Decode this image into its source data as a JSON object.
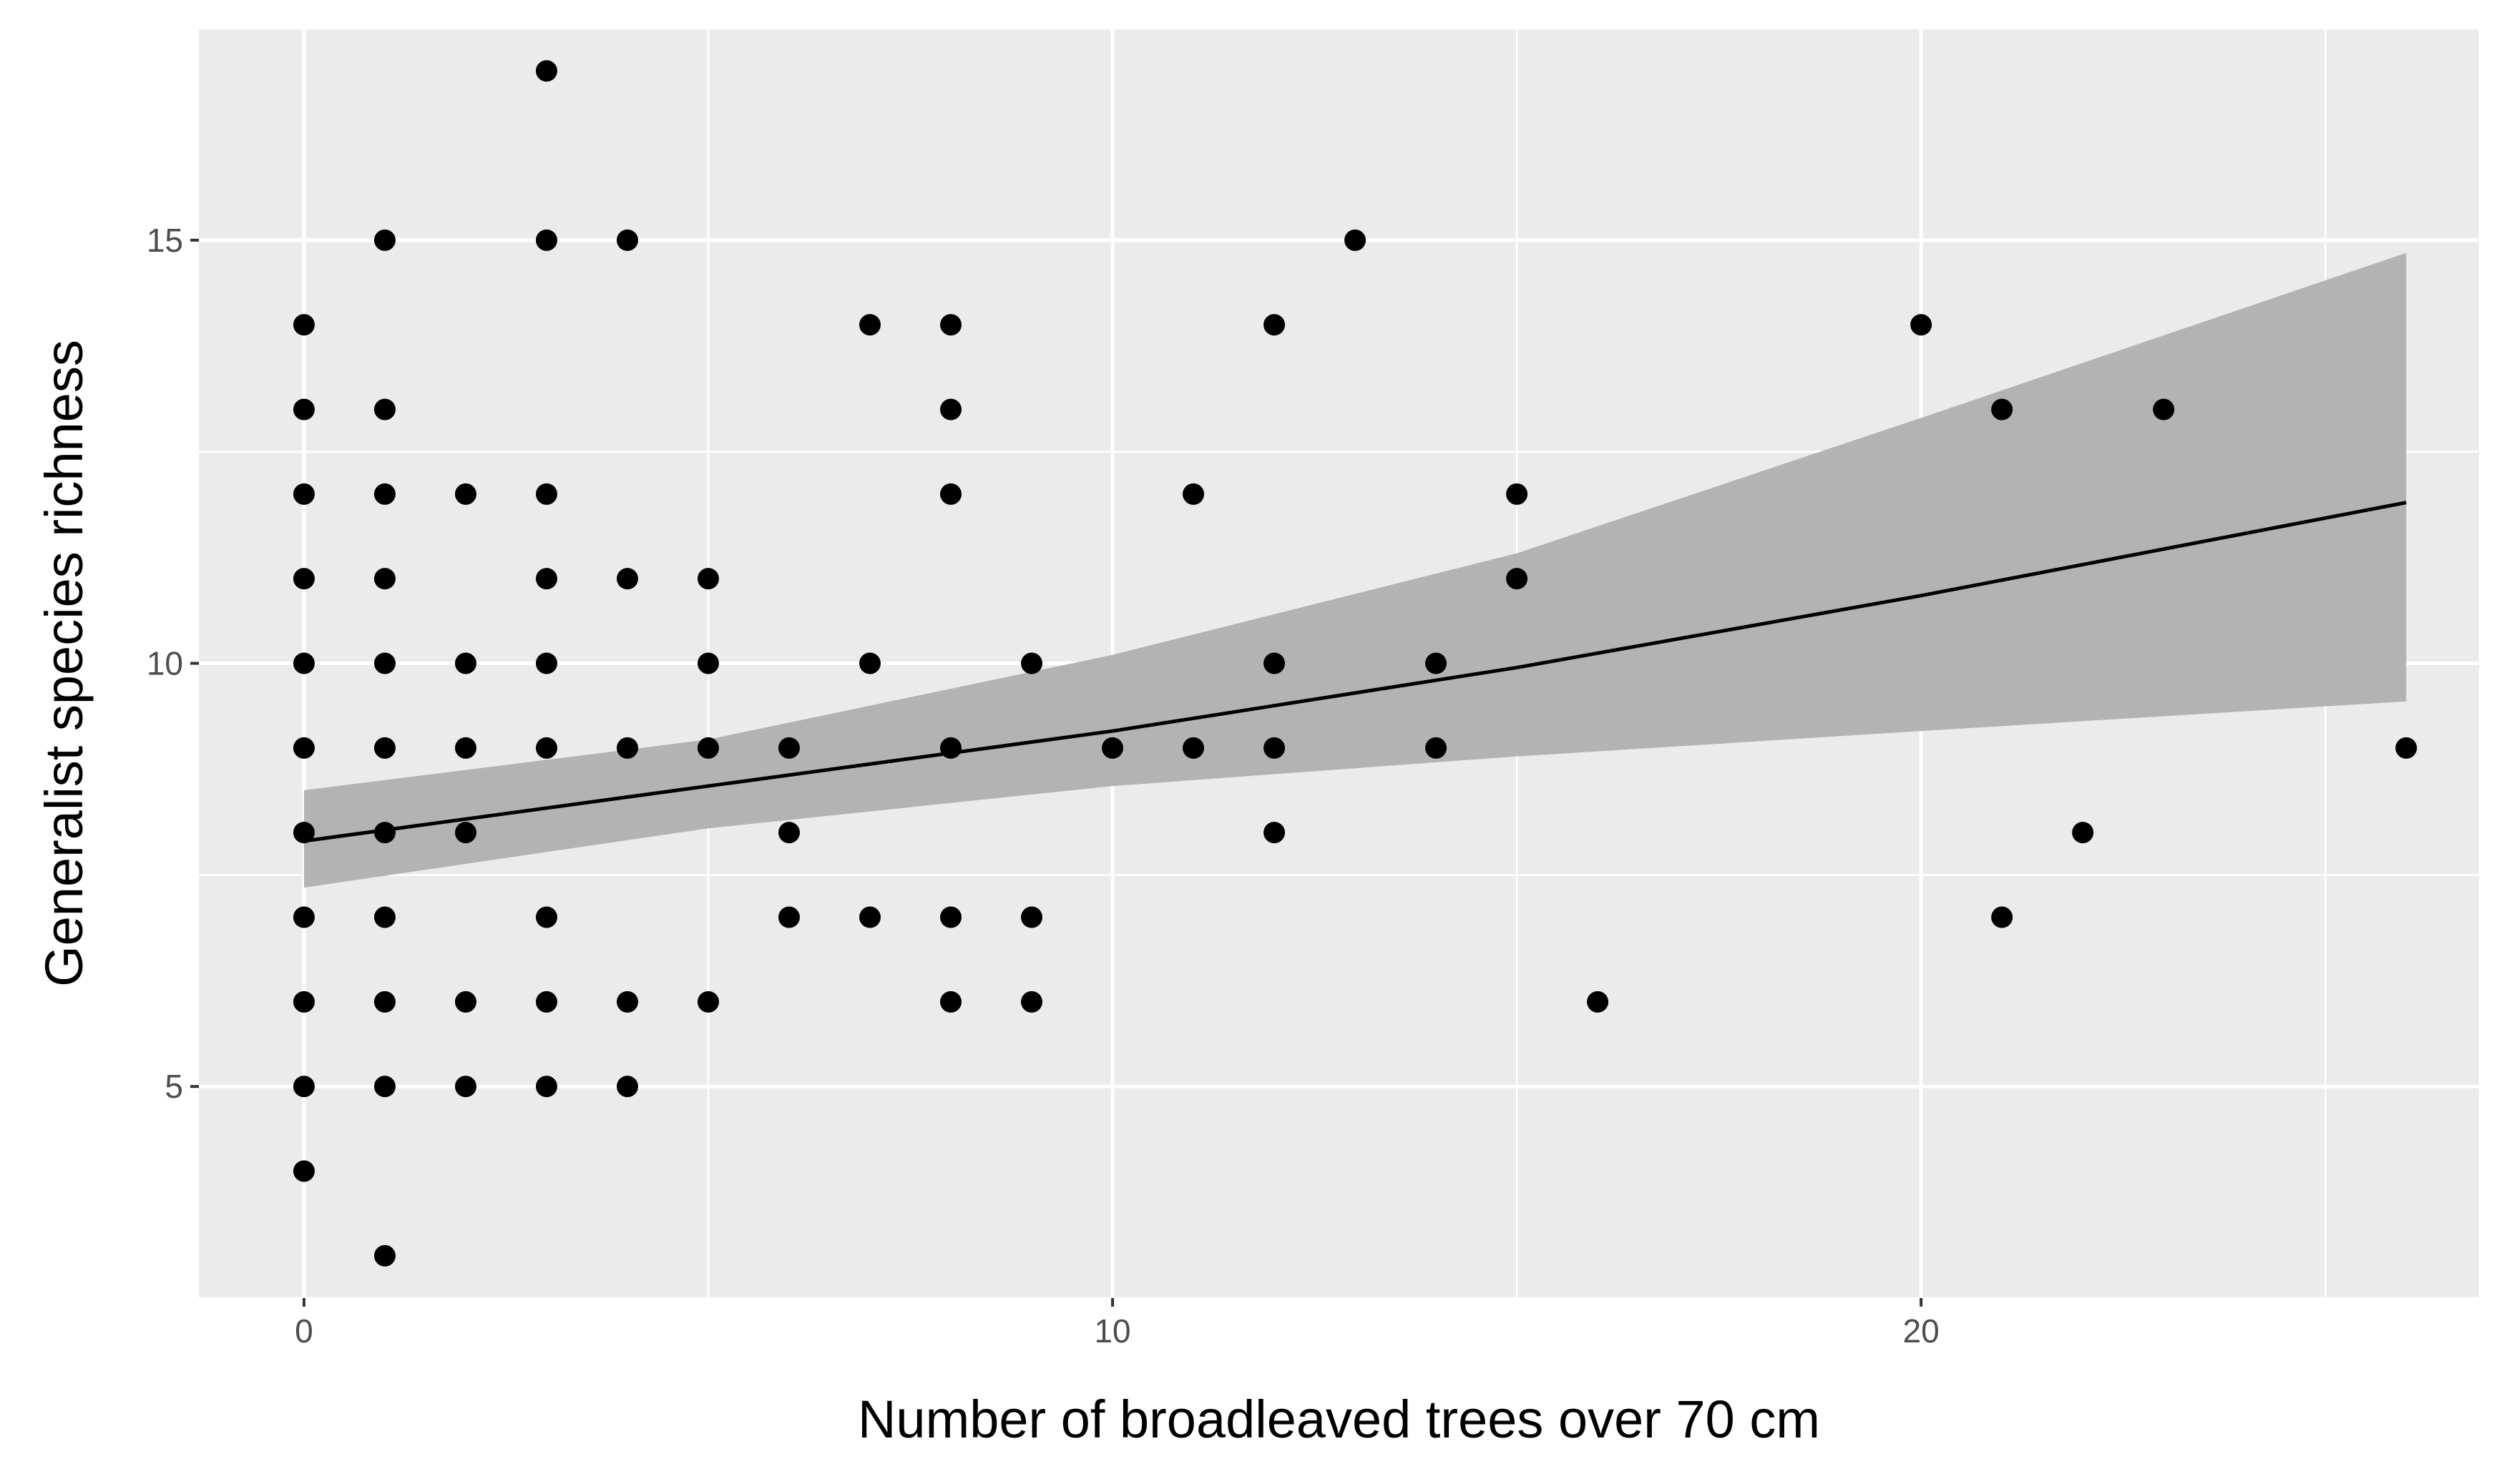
{
  "chart_data": {
    "type": "scatter",
    "title": "",
    "xlabel": "Number of broadleaved trees over 70 cm",
    "ylabel": "Generalist species richness",
    "xlim": [
      -1.3,
      26.9
    ],
    "ylim": [
      2.5,
      17.5
    ],
    "x_ticks": [
      0,
      10,
      20
    ],
    "y_ticks": [
      5,
      10,
      15
    ],
    "grid": true,
    "legend": "none",
    "colors": {
      "panel": "#ebebeb",
      "grid": "#ffffff",
      "points": "#000000",
      "ribbon": "#b3b3b3",
      "fit_line": "#000000"
    },
    "series": [
      {
        "points": [
          [
            0,
            14
          ],
          [
            0,
            13
          ],
          [
            0,
            12
          ],
          [
            0,
            11
          ],
          [
            0,
            10
          ],
          [
            0,
            9
          ],
          [
            0,
            8
          ],
          [
            0,
            7
          ],
          [
            0,
            6
          ],
          [
            0,
            5
          ],
          [
            0,
            4
          ],
          [
            1,
            15
          ],
          [
            1,
            13
          ],
          [
            1,
            12
          ],
          [
            1,
            11
          ],
          [
            1,
            10
          ],
          [
            1,
            9
          ],
          [
            1,
            8
          ],
          [
            1,
            7
          ],
          [
            1,
            6
          ],
          [
            1,
            5
          ],
          [
            1,
            3
          ],
          [
            2,
            12
          ],
          [
            2,
            10
          ],
          [
            2,
            9
          ],
          [
            2,
            8
          ],
          [
            2,
            6
          ],
          [
            2,
            5
          ],
          [
            3,
            17
          ],
          [
            3,
            15
          ],
          [
            3,
            12
          ],
          [
            3,
            11
          ],
          [
            3,
            10
          ],
          [
            3,
            9
          ],
          [
            3,
            7
          ],
          [
            3,
            6
          ],
          [
            3,
            5
          ],
          [
            4,
            15
          ],
          [
            4,
            11
          ],
          [
            4,
            9
          ],
          [
            4,
            6
          ],
          [
            4,
            5
          ],
          [
            5,
            11
          ],
          [
            5,
            10
          ],
          [
            5,
            9
          ],
          [
            5,
            6
          ],
          [
            6,
            9
          ],
          [
            6,
            8
          ],
          [
            6,
            7
          ],
          [
            7,
            14
          ],
          [
            7,
            10
          ],
          [
            7,
            7
          ],
          [
            8,
            14
          ],
          [
            8,
            13
          ],
          [
            8,
            12
          ],
          [
            8,
            9
          ],
          [
            8,
            7
          ],
          [
            8,
            6
          ],
          [
            9,
            10
          ],
          [
            9,
            7
          ],
          [
            9,
            6
          ],
          [
            10,
            9
          ],
          [
            11,
            12
          ],
          [
            11,
            9
          ],
          [
            12,
            14
          ],
          [
            12,
            10
          ],
          [
            12,
            9
          ],
          [
            12,
            8
          ],
          [
            13,
            15
          ],
          [
            14,
            10
          ],
          [
            14,
            9
          ],
          [
            15,
            12
          ],
          [
            15,
            11
          ],
          [
            16,
            6
          ],
          [
            20,
            14
          ],
          [
            21,
            13
          ],
          [
            21,
            7
          ],
          [
            22,
            8
          ],
          [
            23,
            13
          ],
          [
            26,
            9
          ]
        ]
      }
    ],
    "fit": {
      "x": [
        0,
        5,
        10,
        15,
        20,
        26
      ],
      "y": [
        7.9,
        8.55,
        9.2,
        9.95,
        10.8,
        11.9
      ],
      "lower": [
        7.35,
        8.05,
        8.55,
        8.9,
        9.2,
        9.55
      ],
      "upper": [
        8.5,
        9.1,
        10.1,
        11.3,
        12.9,
        14.85
      ]
    }
  }
}
